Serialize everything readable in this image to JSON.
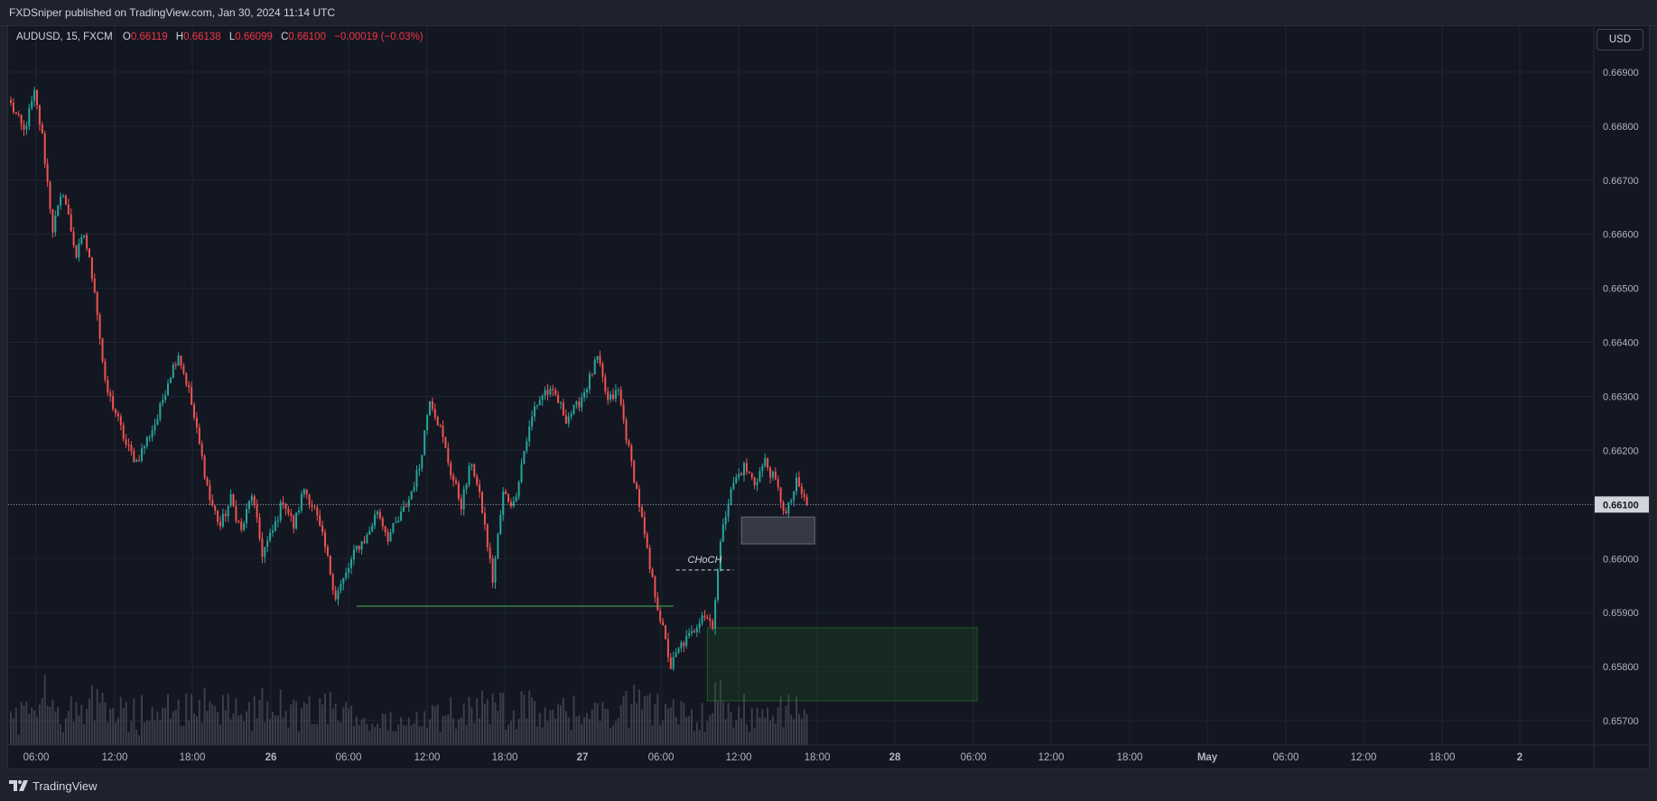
{
  "header": {
    "published_text": "FXDSniper published on TradingView.com, Jan 30, 2024 11:14 UTC"
  },
  "legend": {
    "symbol": "AUDUSD, 15, FXCM",
    "open_label": "O",
    "open_value": "0.66119",
    "high_label": "H",
    "high_value": "0.66138",
    "low_label": "L",
    "low_value": "0.66099",
    "close_label": "C",
    "close_value": "0.66100",
    "change": "−0.00019 (−0.03%)"
  },
  "currency_button": "USD",
  "current_price_label": "0.66100",
  "annotations": {
    "choch_label": "CHoCH"
  },
  "footer": {
    "brand": "TradingView"
  },
  "colors": {
    "background": "#131722",
    "up": "#26a69a",
    "down": "#ef5350",
    "grid": "#1f2433",
    "volume": "#5d606b",
    "level_line": "#4caf50",
    "demand_zone": "#1b5e20",
    "box_gray": "#787b86"
  },
  "chart_data": {
    "type": "candlestick",
    "symbol": "AUDUSD",
    "interval": "15",
    "y_ticks": [
      "0.66900",
      "0.66800",
      "0.66700",
      "0.66600",
      "0.66500",
      "0.66400",
      "0.66300",
      "0.66200",
      "0.66100",
      "0.66000",
      "0.65900",
      "0.65800",
      "0.65700"
    ],
    "ylim": [
      0.65655,
      0.66985
    ],
    "x_ticks": [
      "06:00",
      "12:00",
      "18:00",
      "26",
      "06:00",
      "12:00",
      "18:00",
      "27",
      "06:00",
      "12:00",
      "18:00",
      "28",
      "06:00",
      "12:00",
      "18:00",
      "May",
      "06:00",
      "12:00",
      "18:00",
      "2"
    ],
    "current_price": 0.661,
    "path_anchors": [
      [
        0,
        0.6684
      ],
      [
        5,
        0.6679
      ],
      [
        9,
        0.6686
      ],
      [
        12,
        0.6678
      ],
      [
        16,
        0.6661
      ],
      [
        20,
        0.6668
      ],
      [
        25,
        0.6656
      ],
      [
        28,
        0.666
      ],
      [
        32,
        0.665
      ],
      [
        36,
        0.6632
      ],
      [
        40,
        0.6627
      ],
      [
        44,
        0.6621
      ],
      [
        48,
        0.6618
      ],
      [
        52,
        0.6622
      ],
      [
        56,
        0.6626
      ],
      [
        60,
        0.6633
      ],
      [
        64,
        0.6638
      ],
      [
        68,
        0.6631
      ],
      [
        72,
        0.6621
      ],
      [
        76,
        0.6611
      ],
      [
        80,
        0.6606
      ],
      [
        84,
        0.6611
      ],
      [
        88,
        0.6605
      ],
      [
        92,
        0.6612
      ],
      [
        96,
        0.6601
      ],
      [
        100,
        0.6605
      ],
      [
        104,
        0.6611
      ],
      [
        108,
        0.6606
      ],
      [
        112,
        0.6613
      ],
      [
        116,
        0.6609
      ],
      [
        120,
        0.6602
      ],
      [
        124,
        0.6593
      ],
      [
        128,
        0.6597
      ],
      [
        132,
        0.6602
      ],
      [
        136,
        0.6604
      ],
      [
        140,
        0.6609
      ],
      [
        144,
        0.6604
      ],
      [
        148,
        0.6607
      ],
      [
        152,
        0.6611
      ],
      [
        156,
        0.6617
      ],
      [
        160,
        0.663
      ],
      [
        164,
        0.6624
      ],
      [
        168,
        0.6616
      ],
      [
        172,
        0.661
      ],
      [
        176,
        0.6618
      ],
      [
        180,
        0.6609
      ],
      [
        184,
        0.6596
      ],
      [
        188,
        0.6612
      ],
      [
        192,
        0.661
      ],
      [
        196,
        0.662
      ],
      [
        200,
        0.6628
      ],
      [
        204,
        0.6631
      ],
      [
        208,
        0.663
      ],
      [
        212,
        0.6626
      ],
      [
        216,
        0.6628
      ],
      [
        220,
        0.6632
      ],
      [
        224,
        0.6637
      ],
      [
        228,
        0.6629
      ],
      [
        232,
        0.6631
      ],
      [
        236,
        0.662
      ],
      [
        240,
        0.661
      ],
      [
        244,
        0.6598
      ],
      [
        248,
        0.6589
      ],
      [
        252,
        0.658
      ],
      [
        256,
        0.6584
      ],
      [
        260,
        0.6586
      ],
      [
        264,
        0.659
      ],
      [
        268,
        0.6588
      ],
      [
        272,
        0.6607
      ],
      [
        276,
        0.6614
      ],
      [
        280,
        0.6617
      ],
      [
        284,
        0.6614
      ],
      [
        288,
        0.6618
      ],
      [
        292,
        0.6614
      ],
      [
        296,
        0.6608
      ],
      [
        300,
        0.6614
      ],
      [
        304,
        0.661
      ]
    ],
    "annotations": [
      {
        "type": "horizontal_segment",
        "price": 0.65912,
        "from_bar": 132,
        "to_bar": 253,
        "color": "green"
      },
      {
        "type": "dashed_segment",
        "price": 0.65979,
        "from_bar": 254,
        "to_bar": 276,
        "label": "CHoCH"
      },
      {
        "type": "zone",
        "price_top": 0.65872,
        "price_bottom": 0.65737,
        "from_bar": 266,
        "to_bar": 369,
        "color": "green"
      },
      {
        "type": "zone",
        "price_top": 0.66077,
        "price_bottom": 0.66027,
        "from_bar": 279,
        "to_bar": 307,
        "color": "gray"
      }
    ]
  }
}
